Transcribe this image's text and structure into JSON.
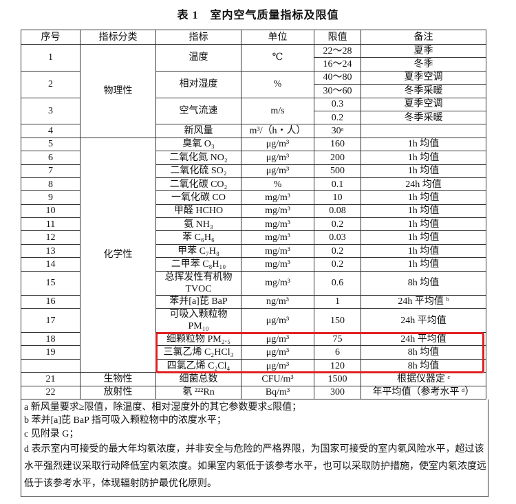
{
  "title": "表 1　室内空气质量指标及限值",
  "headers": [
    "序号",
    "指标分类",
    "指标",
    "单位",
    "限值",
    "备注"
  ],
  "groups": [
    {
      "category": "物理性",
      "items": [
        {
          "no": "1",
          "indicator": "温度",
          "unit": "℃",
          "limits": [
            {
              "value": "22～28",
              "note": "夏季"
            },
            {
              "value": "16～24",
              "note": "冬季"
            }
          ]
        },
        {
          "no": "2",
          "indicator": "相对湿度",
          "unit": "%",
          "limits": [
            {
              "value": "40～80",
              "note": "夏季空调"
            },
            {
              "value": "30～60",
              "note": "冬季采暖"
            }
          ]
        },
        {
          "no": "3",
          "indicator": "空气流速",
          "unit": "m/s",
          "limits": [
            {
              "value": "0.3",
              "note": "夏季空调"
            },
            {
              "value": "0.2",
              "note": "冬季采暖"
            }
          ]
        },
        {
          "no": "4",
          "indicator": "新风量",
          "unit": "m³/（h・人）",
          "limits": [
            {
              "value": "30ᵃ",
              "note": ""
            }
          ]
        }
      ]
    },
    {
      "category": "化学性",
      "items": [
        {
          "no": "5",
          "indicator": "臭氧 O₃",
          "unit": "μg/m³",
          "limits": [
            {
              "value": "160",
              "note": "1h 均值"
            }
          ]
        },
        {
          "no": "6",
          "indicator": "二氧化氮 NO₂",
          "unit": "μg/m³",
          "limits": [
            {
              "value": "200",
              "note": "1h 均值"
            }
          ]
        },
        {
          "no": "7",
          "indicator": "二氧化硫 SO₂",
          "unit": "μg/m³",
          "limits": [
            {
              "value": "500",
              "note": "1h 均值"
            }
          ]
        },
        {
          "no": "8",
          "indicator": "二氧化碳 CO₂",
          "unit": "%",
          "limits": [
            {
              "value": "0.1",
              "note": "24h 均值"
            }
          ]
        },
        {
          "no": "9",
          "indicator": "一氧化碳 CO",
          "unit": "mg/m³",
          "limits": [
            {
              "value": "10",
              "note": "1h 均值"
            }
          ]
        },
        {
          "no": "10",
          "indicator": "甲醛 HCHO",
          "unit": "mg/m³",
          "limits": [
            {
              "value": "0.08",
              "note": "1h 均值"
            }
          ]
        },
        {
          "no": "11",
          "indicator": "氨 NH₃",
          "unit": "mg/m³",
          "limits": [
            {
              "value": "0.2",
              "note": "1h 均值"
            }
          ]
        },
        {
          "no": "12",
          "indicator": "苯 C₆H₆",
          "unit": "mg/m³",
          "limits": [
            {
              "value": "0.03",
              "note": "1h 均值"
            }
          ]
        },
        {
          "no": "13",
          "indicator": "甲苯 C₇H₈",
          "unit": "mg/m³",
          "limits": [
            {
              "value": "0.2",
              "note": "1h 均值"
            }
          ]
        },
        {
          "no": "14",
          "indicator": "二甲苯 C₈H₁₀",
          "unit": "mg/m³",
          "limits": [
            {
              "value": "0.2",
              "note": "1h 均值"
            }
          ]
        },
        {
          "no": "15",
          "indicator": "总挥发性有机物\nTVOC",
          "unit": "mg/m³",
          "limits": [
            {
              "value": "0.6",
              "note": "8h 均值"
            }
          ]
        },
        {
          "no": "16",
          "indicator": "苯并[a]芘 BaP",
          "unit": "ng/m³",
          "limits": [
            {
              "value": "1",
              "note": "24h 平均值 ᵇ"
            }
          ]
        },
        {
          "no": "17",
          "indicator": "可吸入颗粒物\nPM₁₀",
          "unit": "μg/m³",
          "limits": [
            {
              "value": "150",
              "note": "24h 平均值"
            }
          ]
        },
        {
          "no": "18",
          "indicator": "细颗粒物 PM₂.₅",
          "unit": "μg/m³",
          "limits": [
            {
              "value": "75",
              "note": "24h 平均值"
            }
          ]
        },
        {
          "no": "19",
          "indicator": "三氯乙烯 C₂HCl₃",
          "unit": "μg/m³",
          "limits": [
            {
              "value": "6",
              "note": "8h 均值"
            }
          ]
        },
        {
          "no": "",
          "indicator": "四氯乙烯 C₂Cl₄",
          "unit": "μg/m³",
          "limits": [
            {
              "value": "120",
              "note": "8h 均值"
            }
          ]
        }
      ]
    },
    {
      "category": "生物性",
      "items": [
        {
          "no": "21",
          "indicator": "细菌总数",
          "unit": "CFU/m³",
          "limits": [
            {
              "value": "1500",
              "note": "根据仪器定 ᶜ"
            }
          ]
        }
      ]
    },
    {
      "category": "放射性",
      "items": [
        {
          "no": "22",
          "indicator": "氡 ²²²Rn",
          "unit": "Bq/m³",
          "limits": [
            {
              "value": "300",
              "note": "年平均值（参考水平 ᵈ）"
            }
          ]
        }
      ]
    }
  ],
  "footnotes": [
    "a 新风量要求≥限值，除温度、相对湿度外的其它参数要求≤限值；",
    "b 苯并[a]芘 BaP 指可吸入颗粒物中的浓度水平；",
    "c 见附录 G；",
    "d 表示室内可接受的最大年均氡浓度，并非安全与危险的严格界限，为国家可接受的室内氡风险水平，超过该水平强烈建议采取行动降低室内氡浓度。如果室内氡低于该参考水平，也可以采取防护措施，使室内氡浓度远低于该参考水平，体现辐射防护最优化原则。"
  ],
  "highlight_color": "#e02020"
}
